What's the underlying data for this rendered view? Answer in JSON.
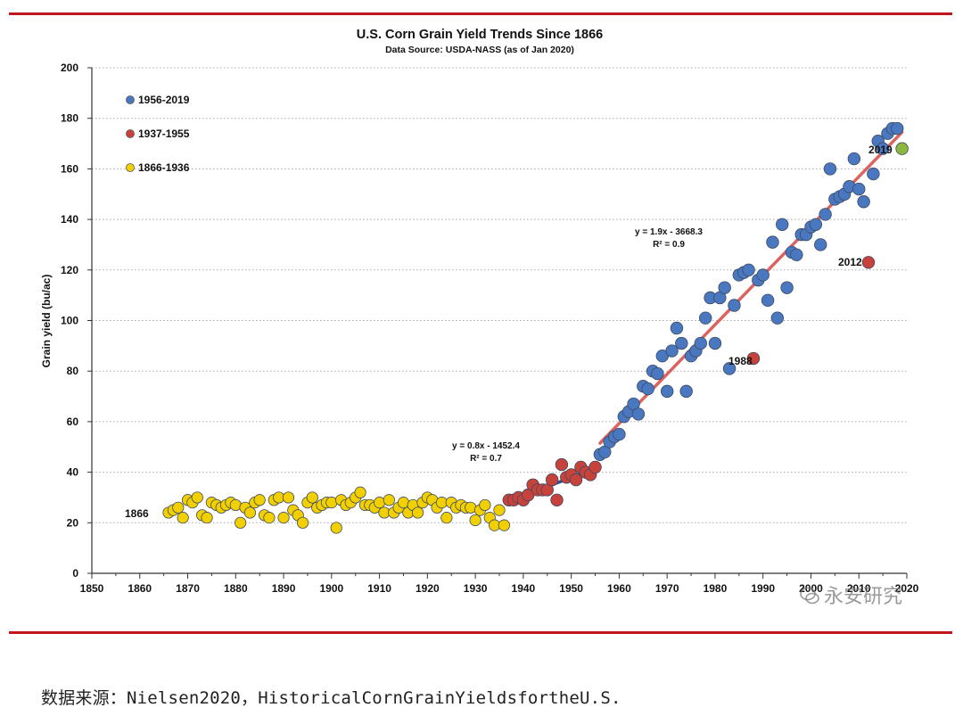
{
  "chart_data": {
    "type": "scatter",
    "title": "U.S. Corn Grain Yield Trends Since 1866",
    "subtitle": "Data Source: USDA-NASS (as of Jan 2020)",
    "xlabel": "",
    "ylabel": "Grain yield (bu/ac)",
    "xlim": [
      1850,
      2020
    ],
    "ylim": [
      0,
      200
    ],
    "x_ticks": [
      "1850",
      "1860",
      "1870",
      "1880",
      "1890",
      "1900",
      "1910",
      "1920",
      "1930",
      "1940",
      "1950",
      "1960",
      "1970",
      "1980",
      "1990",
      "2000",
      "2010",
      "2020"
    ],
    "y_ticks": [
      "0",
      "20",
      "40",
      "60",
      "80",
      "100",
      "120",
      "140",
      "160",
      "180",
      "200"
    ],
    "grid": "horizontal dotted",
    "legend_position": "top-left",
    "series": [
      {
        "name": "1866-1936",
        "color": "#f2d000",
        "x": [
          1866,
          1867,
          1868,
          1869,
          1870,
          1871,
          1872,
          1873,
          1874,
          1875,
          1876,
          1877,
          1878,
          1879,
          1880,
          1881,
          1882,
          1883,
          1884,
          1885,
          1886,
          1887,
          1888,
          1889,
          1890,
          1891,
          1892,
          1893,
          1894,
          1895,
          1896,
          1897,
          1898,
          1899,
          1900,
          1901,
          1902,
          1903,
          1904,
          1905,
          1906,
          1907,
          1908,
          1909,
          1910,
          1911,
          1912,
          1913,
          1914,
          1915,
          1916,
          1917,
          1918,
          1919,
          1920,
          1921,
          1922,
          1923,
          1924,
          1925,
          1926,
          1927,
          1928,
          1929,
          1930,
          1931,
          1932,
          1933,
          1934,
          1935,
          1936
        ],
        "values": [
          24,
          25,
          26,
          22,
          29,
          28,
          30,
          23,
          22,
          28,
          27,
          26,
          27,
          28,
          27,
          20,
          26,
          24,
          28,
          29,
          23,
          22,
          29,
          30,
          22,
          30,
          25,
          23,
          20,
          28,
          30,
          26,
          27,
          28,
          28,
          18,
          29,
          27,
          28,
          30,
          32,
          27,
          27,
          26,
          28,
          24,
          29,
          24,
          26,
          28,
          24,
          27,
          24,
          28,
          30,
          29,
          26,
          28,
          22,
          28,
          26,
          27,
          26,
          26,
          21,
          25,
          27,
          22,
          19,
          25,
          19
        ]
      },
      {
        "name": "1937-1955",
        "color": "#c8423c",
        "x": [
          1937,
          1938,
          1939,
          1940,
          1941,
          1942,
          1943,
          1944,
          1945,
          1946,
          1947,
          1948,
          1949,
          1950,
          1951,
          1952,
          1953,
          1954,
          1955
        ],
        "values": [
          29,
          29,
          30,
          29,
          31,
          35,
          33,
          33,
          33,
          37,
          29,
          43,
          38,
          39,
          37,
          42,
          40,
          39,
          42
        ]
      },
      {
        "name": "1956-2019",
        "color": "#4a78c0",
        "x": [
          1956,
          1957,
          1958,
          1959,
          1960,
          1961,
          1962,
          1963,
          1964,
          1965,
          1966,
          1967,
          1968,
          1969,
          1970,
          1971,
          1972,
          1973,
          1974,
          1975,
          1976,
          1977,
          1978,
          1979,
          1980,
          1981,
          1982,
          1983,
          1984,
          1985,
          1986,
          1987,
          1989,
          1990,
          1991,
          1992,
          1993,
          1994,
          1995,
          1996,
          1997,
          1998,
          1999,
          2000,
          2001,
          2002,
          2003,
          2004,
          2005,
          2006,
          2007,
          2008,
          2009,
          2010,
          2011,
          2013,
          2014,
          2015,
          2016,
          2017,
          2018
        ],
        "values": [
          47,
          48,
          52,
          54,
          55,
          62,
          64,
          67,
          63,
          74,
          73,
          80,
          79,
          86,
          72,
          88,
          97,
          91,
          72,
          86,
          88,
          91,
          101,
          109,
          91,
          109,
          113,
          81,
          106,
          118,
          119,
          120,
          116,
          118,
          108,
          131,
          101,
          138,
          113,
          127,
          126,
          134,
          134,
          137,
          138,
          130,
          142,
          160,
          148,
          149,
          150,
          153,
          164,
          152,
          147,
          158,
          171,
          168,
          174,
          176,
          176
        ]
      }
    ],
    "highlighted_points": [
      {
        "x": 1988,
        "y": 85,
        "label": "1988",
        "color": "#c8423c"
      },
      {
        "x": 2012,
        "y": 123,
        "label": "2012",
        "color": "#c8423c"
      },
      {
        "x": 2019,
        "y": 168,
        "label": "2019",
        "color": "#8db83e"
      }
    ],
    "trendlines": [
      {
        "x_range": [
          1937,
          1955
        ],
        "y_range": [
          28.4,
          41.6
        ],
        "color": "#1f3a8a",
        "label": "y = 0.8x - 1452.4",
        "r2": "R² = 0.7"
      },
      {
        "x_range": [
          1956,
          2019
        ],
        "y_range": [
          51.5,
          174.5
        ],
        "color": "#d9534f",
        "label": "y = 1.9x - 3668.3",
        "r2": "R² = 0.9"
      }
    ],
    "annotations": [
      {
        "text": "1866",
        "x": 1866,
        "y": 24
      }
    ]
  },
  "watermark": "永安研究",
  "source_note": "数据来源：Nielsen2020，HistoricalCornGrainYieldsfortheU.S."
}
